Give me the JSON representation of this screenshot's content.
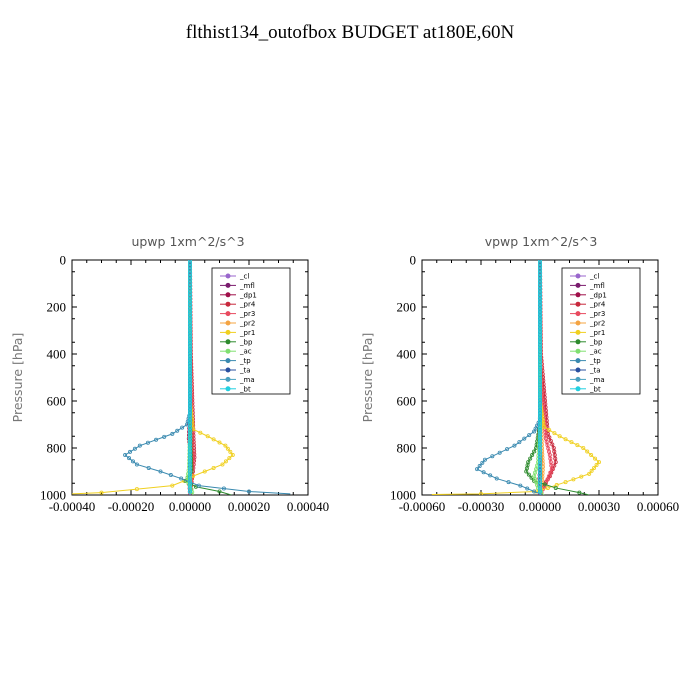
{
  "title": "flthist134_outofbox  BUDGET at180E,60N",
  "chart_data": [
    {
      "type": "line",
      "title": "upwp   1xm^2/s^3",
      "ylabel": "Pressure [hPa]",
      "xlim": [
        -0.0004,
        0.0004
      ],
      "ylim": [
        1000,
        0
      ],
      "x_ticks": [
        "-0.00040",
        "-0.00020",
        "0.00000",
        "0.00020",
        "0.00040"
      ],
      "y_ticks": [
        "0",
        "200",
        "400",
        "600",
        "800",
        "1000"
      ],
      "legend_position": "top-right",
      "series": [
        {
          "name": "_cl",
          "color": "#9966cc",
          "x": [
            0,
            0,
            0,
            0,
            0,
            0,
            0
          ],
          "y": [
            0,
            200,
            400,
            600,
            800,
            950,
            1000
          ]
        },
        {
          "name": "_mfl",
          "color": "#7a1c6e",
          "x": [
            0,
            0,
            0,
            0,
            0,
            0,
            0
          ],
          "y": [
            0,
            200,
            400,
            600,
            800,
            950,
            1000
          ]
        },
        {
          "name": "_dp1",
          "color": "#a0104a",
          "x": [
            0,
            0,
            2e-06,
            -4e-06,
            6e-06,
            -3e-06,
            0
          ],
          "y": [
            0,
            200,
            600,
            760,
            840,
            930,
            1000
          ]
        },
        {
          "name": "_pr4",
          "color": "#c8283c",
          "x": [
            0,
            3e-06,
            1.2e-05,
            1.5e-05,
            1e-05,
            4e-06,
            0
          ],
          "y": [
            0,
            400,
            760,
            840,
            900,
            960,
            1000
          ]
        },
        {
          "name": "_pr3",
          "color": "#e84a5f",
          "x": [
            0,
            2e-06,
            8e-06,
            1e-05,
            6e-06,
            0
          ],
          "y": [
            0,
            500,
            780,
            850,
            920,
            1000
          ]
        },
        {
          "name": "_pr2",
          "color": "#f4a442",
          "x": [
            0,
            1e-06,
            2e-06,
            2e-06,
            1e-06,
            0
          ],
          "y": [
            0,
            600,
            800,
            880,
            950,
            1000
          ]
        },
        {
          "name": "_pr1",
          "color": "#f0d020",
          "x": [
            0,
            0,
            1e-05,
            6e-05,
            0.00012,
            0.000145,
            0.00011,
            5e-05,
            1e-05,
            -2e-05,
            -6e-05,
            -0.0003,
            -0.0004
          ],
          "y": [
            0,
            600,
            720,
            750,
            790,
            830,
            870,
            900,
            920,
            940,
            960,
            990,
            995
          ]
        },
        {
          "name": "_bp",
          "color": "#2e8b2e",
          "x": [
            0,
            0,
            2e-06,
            5e-06,
            -1.5e-05,
            2e-05,
            0.0001,
            0.00014
          ],
          "y": [
            0,
            600,
            800,
            900,
            940,
            965,
            985,
            1000
          ]
        },
        {
          "name": "_ac",
          "color": "#80e070",
          "x": [
            0,
            0,
            -3e-06,
            -1e-05,
            5e-06,
            1e-05
          ],
          "y": [
            0,
            700,
            880,
            940,
            975,
            1000
          ]
        },
        {
          "name": "_tp",
          "color": "#3a8ab0",
          "x": [
            0,
            0,
            -1e-05,
            -6e-05,
            -0.00017,
            -0.00022,
            -0.00018,
            -0.0001,
            -3e-05,
            3e-05,
            0.0002,
            0.00034
          ],
          "y": [
            0,
            650,
            700,
            740,
            790,
            830,
            870,
            900,
            930,
            960,
            985,
            995
          ]
        },
        {
          "name": "_ta",
          "color": "#2850a0",
          "x": [
            0,
            0,
            0,
            0,
            0,
            0
          ],
          "y": [
            0,
            200,
            400,
            600,
            800,
            1000
          ]
        },
        {
          "name": "_ma",
          "color": "#4aa0c0",
          "x": [
            0,
            0,
            0,
            0,
            0,
            0
          ],
          "y": [
            0,
            200,
            400,
            600,
            800,
            1000
          ]
        },
        {
          "name": "_bt",
          "color": "#22d0e0",
          "x": [
            0,
            0,
            0,
            0,
            0,
            0
          ],
          "y": [
            0,
            200,
            400,
            600,
            800,
            1000
          ]
        }
      ]
    },
    {
      "type": "line",
      "title": "vpwp   1xm^2/s^3",
      "ylabel": "Pressure [hPa]",
      "xlim": [
        -0.0006,
        0.0006
      ],
      "ylim": [
        1000,
        0
      ],
      "x_ticks": [
        "-0.00060",
        "-0.00030",
        "0.00000",
        "0.00030",
        "0.00060"
      ],
      "y_ticks": [
        "0",
        "200",
        "400",
        "600",
        "800",
        "1000"
      ],
      "legend_position": "top-right",
      "series": [
        {
          "name": "_cl",
          "color": "#9966cc",
          "x": [
            0,
            0,
            0,
            0,
            0,
            0,
            0
          ],
          "y": [
            0,
            200,
            400,
            600,
            800,
            950,
            1000
          ]
        },
        {
          "name": "_mfl",
          "color": "#7a1c6e",
          "x": [
            0,
            0,
            0,
            0,
            0,
            0,
            0
          ],
          "y": [
            0,
            200,
            400,
            600,
            800,
            950,
            1000
          ]
        },
        {
          "name": "_dp1",
          "color": "#a0104a",
          "x": [
            0,
            0,
            3e-06,
            -5e-06,
            4e-06,
            -3e-06,
            0
          ],
          "y": [
            0,
            200,
            600,
            760,
            840,
            930,
            1000
          ]
        },
        {
          "name": "_pr4",
          "color": "#c8283c",
          "x": [
            0,
            5e-06,
            4e-05,
            7e-05,
            8e-05,
            5e-05,
            1e-05,
            0
          ],
          "y": [
            0,
            400,
            740,
            800,
            860,
            920,
            970,
            1000
          ]
        },
        {
          "name": "_pr3",
          "color": "#e84a5f",
          "x": [
            0,
            4e-06,
            3e-05,
            5e-05,
            6e-05,
            3e-05,
            0
          ],
          "y": [
            0,
            500,
            760,
            830,
            890,
            950,
            1000
          ]
        },
        {
          "name": "_pr2",
          "color": "#f4a442",
          "x": [
            0,
            2e-06,
            1e-05,
            1.5e-05,
            1e-05,
            0
          ],
          "y": [
            0,
            600,
            800,
            880,
            950,
            1000
          ]
        },
        {
          "name": "_pr1",
          "color": "#f0d020",
          "x": [
            0,
            0,
            2e-05,
            0.0001,
            0.00022,
            0.0003,
            0.00025,
            0.00013,
            4e-05,
            -2e-05,
            -0.0003,
            -0.00055
          ],
          "y": [
            0,
            600,
            710,
            750,
            800,
            860,
            910,
            945,
            970,
            985,
            995,
            998
          ]
        },
        {
          "name": "_bp",
          "color": "#2e8b2e",
          "x": [
            0,
            0,
            -2e-05,
            -6e-05,
            -7e-05,
            -3e-05,
            8e-05,
            0.0002,
            0.00025
          ],
          "y": [
            0,
            700,
            800,
            860,
            900,
            940,
            970,
            990,
            1000
          ]
        },
        {
          "name": "_ac",
          "color": "#80e070",
          "x": [
            0,
            0,
            -1e-05,
            -3e-05,
            -1e-05,
            2e-05
          ],
          "y": [
            0,
            720,
            860,
            920,
            970,
            1000
          ]
        },
        {
          "name": "_tp",
          "color": "#3a8ab0",
          "x": [
            0,
            0,
            -3e-05,
            -0.00013,
            -0.00028,
            -0.00032,
            -0.00022,
            -0.0001,
            -3e-05,
            1e-05
          ],
          "y": [
            0,
            680,
            730,
            790,
            850,
            890,
            930,
            960,
            985,
            998
          ]
        },
        {
          "name": "_ta",
          "color": "#2850a0",
          "x": [
            0,
            0,
            0,
            0,
            0,
            0
          ],
          "y": [
            0,
            200,
            400,
            600,
            800,
            1000
          ]
        },
        {
          "name": "_ma",
          "color": "#4aa0c0",
          "x": [
            0,
            0,
            0,
            0,
            0,
            0
          ],
          "y": [
            0,
            200,
            400,
            600,
            800,
            1000
          ]
        },
        {
          "name": "_bt",
          "color": "#22d0e0",
          "x": [
            0,
            0,
            0,
            0,
            0,
            0
          ],
          "y": [
            0,
            200,
            400,
            600,
            800,
            1000
          ]
        }
      ]
    }
  ]
}
